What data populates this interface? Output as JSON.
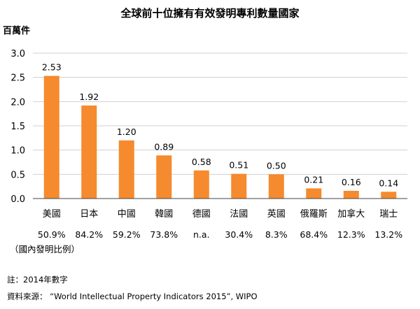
{
  "chart_data": {
    "type": "bar",
    "title": "全球前十位擁有有效發明專利數量國家",
    "ylabel": "百萬件",
    "ylim": [
      0,
      3.0
    ],
    "yticks": [
      "0.0",
      "0.5",
      "1.0",
      "1.5",
      "2.0",
      "2.5",
      "3.0"
    ],
    "grid": true,
    "categories": [
      "美國",
      "日本",
      "中國",
      "韓國",
      "德國",
      "法國",
      "英國",
      "俄羅斯",
      "加拿大",
      "瑞士"
    ],
    "values": [
      2.53,
      1.92,
      1.2,
      0.89,
      0.58,
      0.51,
      0.5,
      0.21,
      0.16,
      0.14
    ],
    "value_labels": [
      "2.53",
      "1.92",
      "1.20",
      "0.89",
      "0.58",
      "0.51",
      "0.50",
      "0.21",
      "0.16",
      "0.14"
    ],
    "domestic_share": [
      "50.9%",
      "84.2%",
      "59.2%",
      "73.8%",
      "n.a.",
      "30.4%",
      "8.3%",
      "68.4%",
      "12.3%",
      "13.2%"
    ],
    "domestic_share_label": "（國內發明比例）",
    "bar_color": "#F58A2E"
  },
  "footer": {
    "note": "註：2014年數字",
    "source": "資料來源：  “World Intellectual Property Indicators 2015”, WIPO"
  }
}
